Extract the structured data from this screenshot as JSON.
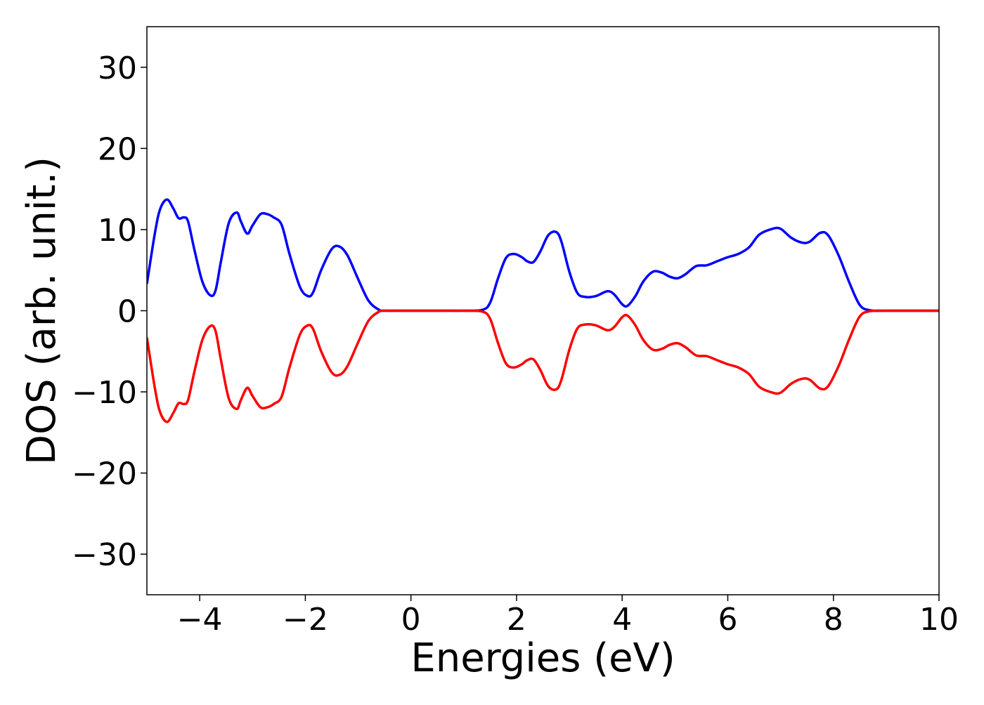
{
  "chart_data": {
    "type": "line",
    "title": "",
    "xlabel": "Energies (eV)",
    "ylabel": "DOS (arb. unit.)",
    "xlim": [
      -5,
      10
    ],
    "ylim": [
      -35,
      35
    ],
    "x_ticks": [
      -4,
      -2,
      0,
      2,
      4,
      6,
      8,
      10
    ],
    "x_tick_labels": [
      "−4",
      "−2",
      "0",
      "2",
      "4",
      "6",
      "8",
      "10"
    ],
    "y_ticks": [
      -30,
      -20,
      -10,
      0,
      10,
      20,
      30
    ],
    "y_tick_labels": [
      "−30",
      "−20",
      "−10",
      "0",
      "10",
      "20",
      "30"
    ],
    "grid": false,
    "legend": "none",
    "series": [
      {
        "color": "#0000ff",
        "x": [
          -5,
          -4.85,
          -4.75,
          -4.62,
          -4.5,
          -4.4,
          -4.3,
          -4.22,
          -4.1,
          -3.95,
          -3.8,
          -3.7,
          -3.6,
          -3.45,
          -3.3,
          -3.22,
          -3.1,
          -3.0,
          -2.85,
          -2.72,
          -2.6,
          -2.45,
          -2.3,
          -2.1,
          -1.95,
          -1.85,
          -1.7,
          -1.5,
          -1.35,
          -1.2,
          -1.0,
          -0.8,
          -0.6,
          -0.5,
          0,
          0.5,
          1.0,
          1.35,
          1.5,
          1.65,
          1.8,
          1.95,
          2.1,
          2.2,
          2.32,
          2.45,
          2.6,
          2.75,
          2.85,
          3.0,
          3.15,
          3.3,
          3.5,
          3.72,
          3.85,
          4.0,
          4.1,
          4.25,
          4.4,
          4.58,
          4.75,
          4.9,
          5.05,
          5.2,
          5.4,
          5.6,
          5.8,
          6.0,
          6.2,
          6.4,
          6.6,
          6.85,
          7.0,
          7.2,
          7.4,
          7.55,
          7.75,
          7.9,
          8.1,
          8.3,
          8.5,
          8.7,
          9.0,
          9.5,
          10
        ],
        "y": [
          3.3,
          9.5,
          12.5,
          13.7,
          12.6,
          11.4,
          11.5,
          11.0,
          7.5,
          3.6,
          1.9,
          2.5,
          6.0,
          10.8,
          12.1,
          11.0,
          9.5,
          10.5,
          11.9,
          11.9,
          11.5,
          10.6,
          7.0,
          2.9,
          1.8,
          2.3,
          5.0,
          7.6,
          7.9,
          6.8,
          3.9,
          1.2,
          0.1,
          0,
          0,
          0,
          0,
          0.1,
          1.0,
          4.0,
          6.5,
          7.0,
          6.6,
          6.1,
          6.0,
          7.3,
          9.3,
          9.7,
          8.5,
          4.8,
          2.2,
          1.7,
          1.8,
          2.4,
          2.0,
          0.8,
          0.6,
          1.8,
          3.6,
          4.8,
          4.7,
          4.2,
          4.0,
          4.5,
          5.5,
          5.6,
          6.1,
          6.6,
          7.0,
          7.8,
          9.4,
          10.1,
          10.1,
          9.0,
          8.4,
          8.5,
          9.6,
          9.3,
          6.8,
          3.5,
          0.7,
          0.05,
          0,
          0,
          0
        ]
      },
      {
        "color": "#ff0000",
        "x": [
          -5,
          -4.85,
          -4.75,
          -4.62,
          -4.5,
          -4.4,
          -4.3,
          -4.22,
          -4.1,
          -3.95,
          -3.8,
          -3.7,
          -3.6,
          -3.45,
          -3.3,
          -3.22,
          -3.1,
          -3.0,
          -2.85,
          -2.72,
          -2.6,
          -2.45,
          -2.3,
          -2.1,
          -1.95,
          -1.85,
          -1.7,
          -1.5,
          -1.35,
          -1.2,
          -1.0,
          -0.8,
          -0.6,
          -0.5,
          0,
          0.5,
          1.0,
          1.35,
          1.5,
          1.65,
          1.8,
          1.95,
          2.1,
          2.2,
          2.32,
          2.45,
          2.6,
          2.75,
          2.85,
          3.0,
          3.15,
          3.3,
          3.5,
          3.72,
          3.85,
          4.0,
          4.1,
          4.25,
          4.4,
          4.58,
          4.75,
          4.9,
          5.05,
          5.2,
          5.4,
          5.6,
          5.8,
          6.0,
          6.2,
          6.4,
          6.6,
          6.85,
          7.0,
          7.2,
          7.4,
          7.55,
          7.75,
          7.9,
          8.1,
          8.3,
          8.5,
          8.7,
          9.0,
          9.5,
          10
        ],
        "y": [
          -3.3,
          -9.5,
          -12.5,
          -13.7,
          -12.6,
          -11.4,
          -11.5,
          -11.0,
          -7.5,
          -3.6,
          -1.9,
          -2.5,
          -6.0,
          -10.8,
          -12.1,
          -11.0,
          -9.5,
          -10.5,
          -11.9,
          -11.9,
          -11.5,
          -10.6,
          -7.0,
          -2.9,
          -1.8,
          -2.3,
          -5.0,
          -7.6,
          -7.9,
          -6.8,
          -3.9,
          -1.2,
          -0.1,
          0,
          0,
          0,
          0,
          -0.1,
          -1.0,
          -4.0,
          -6.5,
          -7.0,
          -6.6,
          -6.1,
          -6.0,
          -7.3,
          -9.3,
          -9.7,
          -8.5,
          -4.8,
          -2.2,
          -1.7,
          -1.8,
          -2.4,
          -2.0,
          -0.8,
          -0.6,
          -1.8,
          -3.6,
          -4.8,
          -4.7,
          -4.2,
          -4.0,
          -4.5,
          -5.5,
          -5.6,
          -6.1,
          -6.6,
          -7.0,
          -7.8,
          -9.4,
          -10.1,
          -10.1,
          -9.0,
          -8.4,
          -8.5,
          -9.6,
          -9.3,
          -6.8,
          -3.5,
          -0.7,
          -0.05,
          0,
          0,
          0
        ]
      }
    ]
  }
}
